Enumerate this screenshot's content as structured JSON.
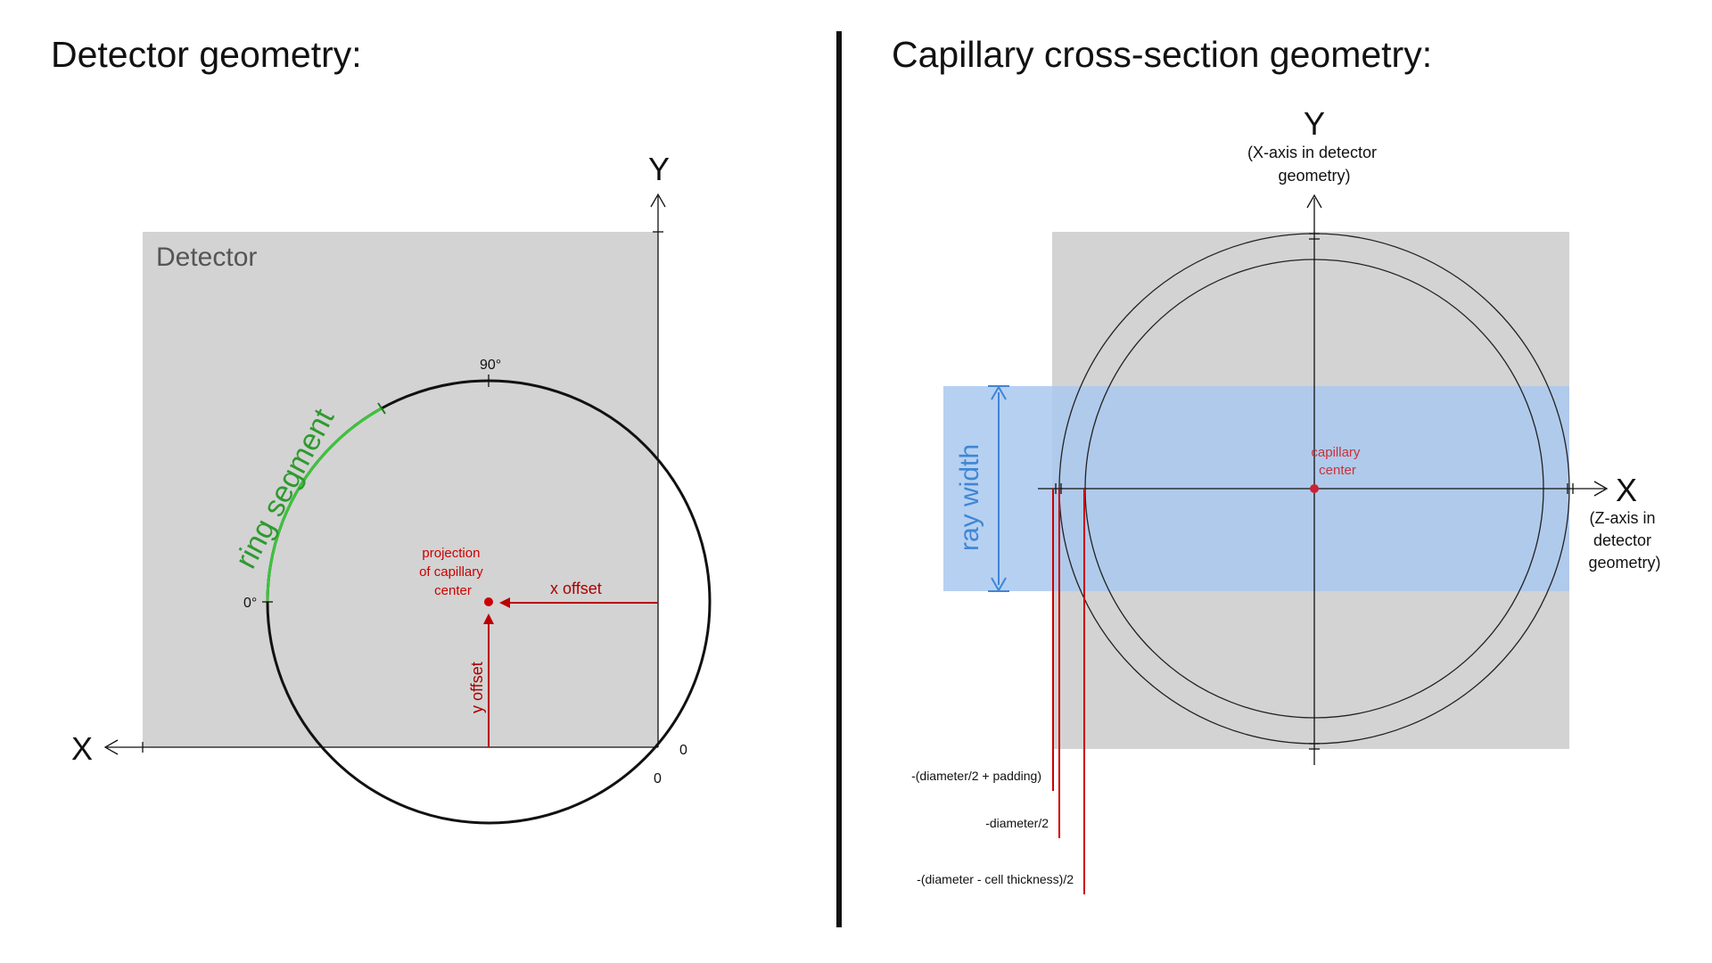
{
  "left_panel": {
    "title": "Detector geometry:",
    "detector_label": "Detector",
    "axis_y": "Y",
    "axis_x": "X",
    "tick_90": "90°",
    "tick_0_deg": "0°",
    "origin_x_label": "0",
    "origin_y_label": "0",
    "ring_segment_label": "ring segment",
    "projection_label": [
      "projection",
      "of capillary",
      "center"
    ],
    "x_offset_label": "x offset",
    "y_offset_label": "y offset"
  },
  "right_panel": {
    "title": "Capillary cross-section geometry:",
    "axis_y": "Y",
    "axis_y_note": [
      "(X-axis in detector",
      "geometry)"
    ],
    "axis_x": "X",
    "axis_x_note": [
      "(Z-axis in",
      "detector",
      "geometry)"
    ],
    "capillary_center_label": [
      "capillary",
      "center"
    ],
    "ray_width_label": "ray width",
    "markers": [
      "-(diameter/2 + padding)",
      "-diameter/2",
      "-(diameter - cell thickness)/2"
    ]
  },
  "colors": {
    "detector_fill": "#d3d3d3",
    "ring_green": "#3cc43c",
    "red": "#cc0000",
    "ray_blue": "#aecdf0",
    "ray_blue_text": "#3f86d4"
  }
}
